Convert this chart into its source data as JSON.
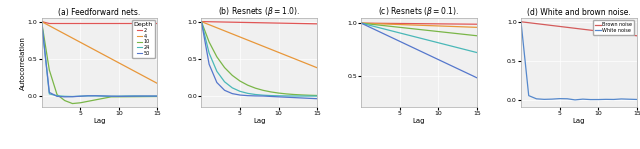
{
  "lags": 15,
  "depths": [
    2,
    4,
    10,
    24,
    50
  ],
  "depth_colors": [
    "#e05555",
    "#e8973a",
    "#7ab648",
    "#4ab8b8",
    "#5577cc"
  ],
  "depth_labels": [
    "2",
    "4",
    "10",
    "24",
    "50"
  ],
  "titles": [
    "(a) Feedforward nets.",
    "(b) Resnets ($\\beta = 1.0$).",
    "(c) Resnets ($\\beta = 0.1$).",
    "(d) White and brown noise."
  ],
  "brown_color": "#d45b5b",
  "white_color": "#5588cc",
  "xlim": [
    0,
    15
  ],
  "ylim_ab": [
    -0.15,
    1.05
  ],
  "ylim_c": [
    0.2,
    1.05
  ],
  "ylim_d": [
    -0.1,
    1.05
  ],
  "xlabel": "Lag",
  "ylabel": "Autocorrelation",
  "bg_color": "#f0f0f0"
}
